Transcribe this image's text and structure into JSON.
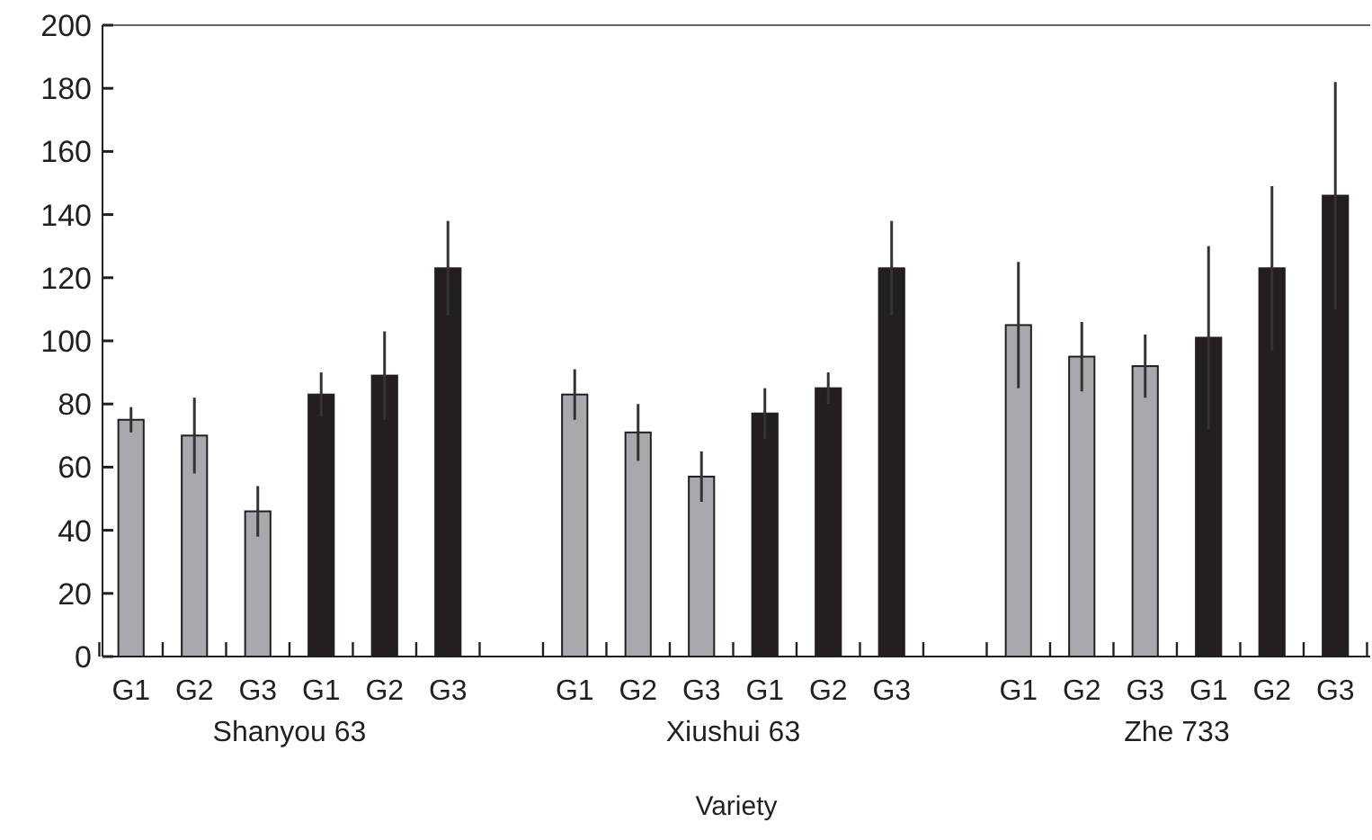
{
  "chart_data": {
    "type": "bar",
    "xlabel": "Variety",
    "categories": [
      "G1",
      "G2",
      "G3",
      "G1",
      "G2",
      "G3",
      "G1",
      "G2",
      "G3",
      "G1",
      "G2",
      "G3",
      "G1",
      "G2",
      "G3",
      "G1",
      "G2",
      "G3"
    ],
    "values": [
      75,
      70,
      46,
      83,
      89,
      123,
      83,
      71,
      57,
      77,
      85,
      123,
      105,
      95,
      92,
      101,
      123,
      146
    ],
    "errors": [
      4,
      12,
      8,
      7,
      14,
      15,
      8,
      9,
      8,
      8,
      5,
      15,
      20,
      11,
      10,
      29,
      26,
      36
    ],
    "colors": [
      "#a7a9ac",
      "#a7a9ac",
      "#a7a9ac",
      "#231f20",
      "#231f20",
      "#231f20",
      "#a7a9ac",
      "#a7a9ac",
      "#a7a9ac",
      "#231f20",
      "#231f20",
      "#231f20",
      "#a7a9ac",
      "#a7a9ac",
      "#a7a9ac",
      "#231f20",
      "#231f20",
      "#231f20"
    ],
    "ylim": [
      0,
      200
    ],
    "yticks": [
      0,
      20,
      40,
      60,
      80,
      100,
      120,
      140,
      160,
      180,
      200
    ],
    "annotations": [
      "Shanyou 63",
      "Xiushui 63",
      "Zhe 733"
    ]
  }
}
